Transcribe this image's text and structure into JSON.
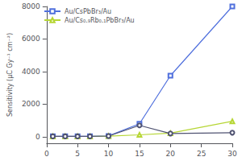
{
  "chart_data": {
    "type": "line",
    "ylabel": "Sensitivity (μC Gy⁻¹ cm⁻²)",
    "x": [
      1,
      3,
      5,
      7,
      10,
      15,
      20,
      30
    ],
    "series": [
      {
        "name": "Au/CsPbBr₃/Au",
        "marker": "square",
        "values": [
          30,
          30,
          30,
          30,
          50,
          800,
          3750,
          8000
        ]
      },
      {
        "name": "Au/Cs₀.₉Rb₀.₁PbBr₃/Au",
        "marker": "triangle",
        "values": [
          20,
          20,
          20,
          20,
          40,
          120,
          220,
          950
        ]
      },
      {
        "marker": "circle",
        "values": [
          25,
          25,
          25,
          25,
          45,
          700,
          200,
          250
        ]
      }
    ],
    "xlim": [
      0,
      30
    ],
    "xticks": [
      0,
      5,
      10,
      15,
      20,
      25,
      30
    ],
    "ylim": [
      -400,
      8000
    ],
    "yticks": [
      0,
      2000,
      4000,
      6000,
      8000
    ],
    "grid": false,
    "legend": "upper left"
  }
}
